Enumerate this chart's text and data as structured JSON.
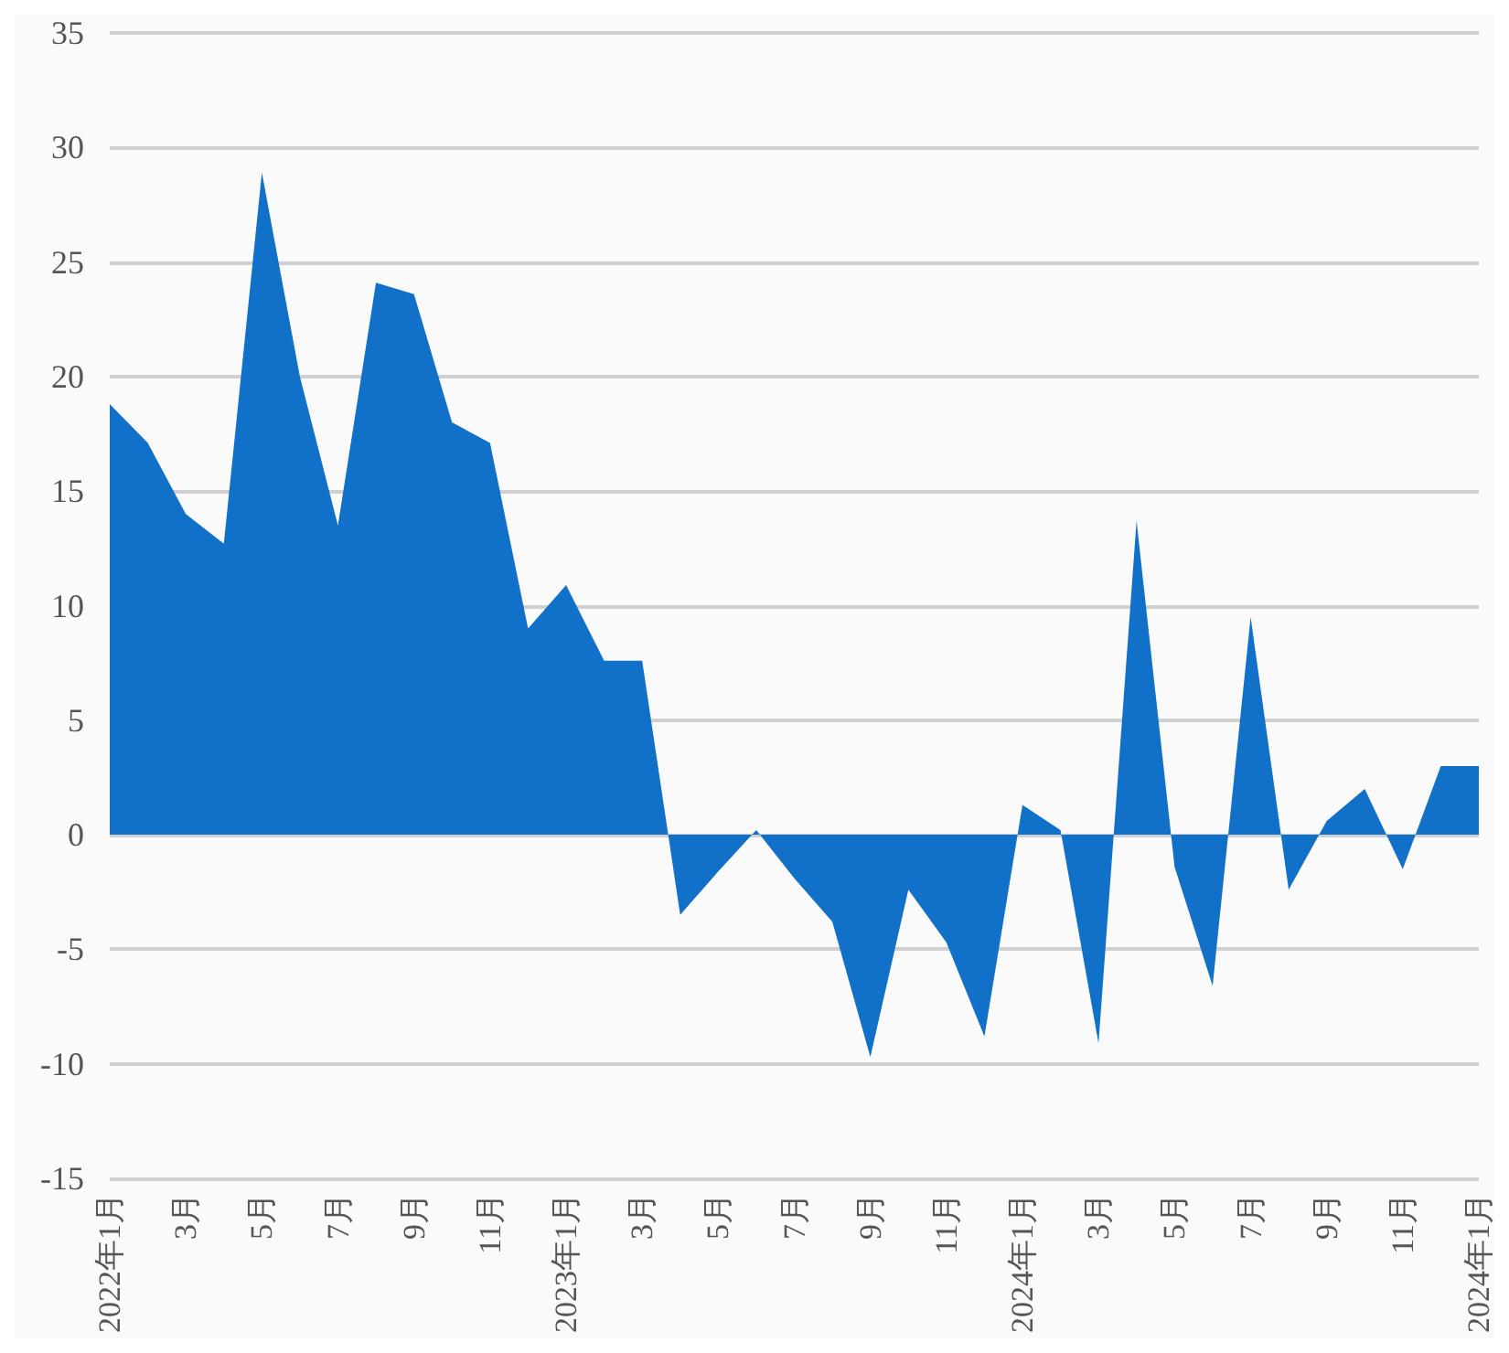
{
  "chart_data": {
    "type": "area",
    "categories": [
      "2022年1月",
      null,
      "3月",
      null,
      "5月",
      null,
      "7月",
      null,
      "9月",
      null,
      "11月",
      null,
      "2023年1月",
      null,
      "3月",
      null,
      "5月",
      null,
      "7月",
      null,
      "9月",
      null,
      "11月",
      null,
      "2024年1月",
      null,
      "3月",
      null,
      "5月",
      null,
      "7月",
      null,
      "9月",
      null,
      "11月",
      null,
      "2024年1月"
    ],
    "values": [
      18.8,
      17.1,
      14.0,
      12.7,
      28.9,
      20.0,
      13.5,
      24.1,
      23.6,
      18.0,
      17.1,
      9.0,
      10.9,
      7.6,
      7.6,
      -3.5,
      -1.6,
      0.2,
      -1.9,
      -3.8,
      -9.7,
      -2.4,
      -4.7,
      -8.8,
      1.3,
      0.2,
      -9.1,
      13.7,
      -1.4,
      -6.6,
      9.5,
      -2.4,
      0.6,
      2.0,
      -1.5,
      3.0,
      3.0
    ],
    "color": "#1170c8",
    "ylim": [
      -15,
      35
    ],
    "yticks": [
      -15,
      -10,
      -5,
      0,
      5,
      10,
      15,
      20,
      25,
      30,
      35
    ],
    "grid": "y",
    "marker": "none"
  }
}
